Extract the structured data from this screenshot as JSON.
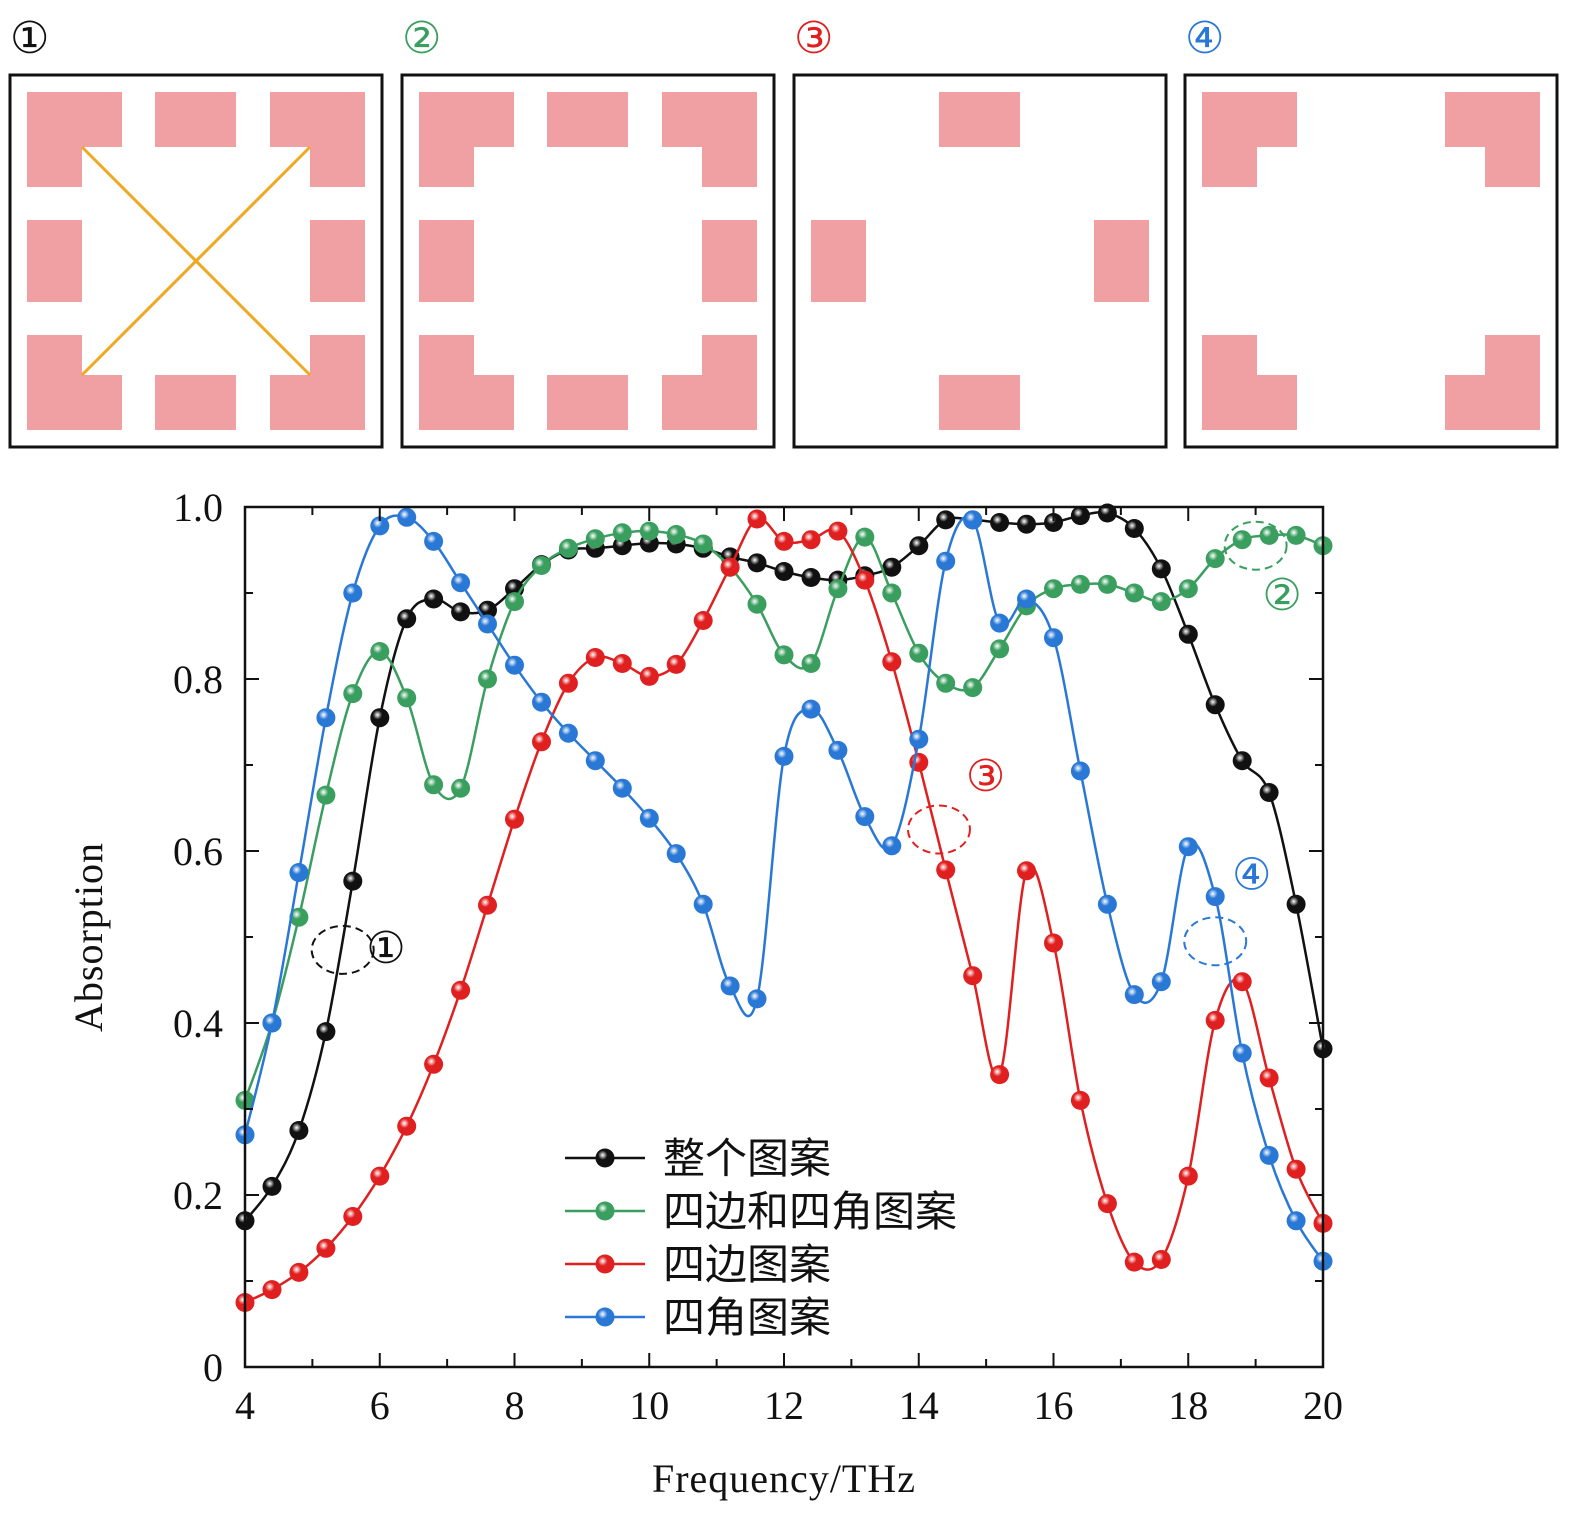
{
  "panels": [
    {
      "label": "①",
      "color": "#111111",
      "pattern": "whole",
      "diagonals": true
    },
    {
      "label": "②",
      "color": "#3a9e5f",
      "pattern": "sides-and-corners",
      "diagonals": false
    },
    {
      "label": "③",
      "color": "#e02020",
      "pattern": "sides",
      "diagonals": false
    },
    {
      "label": "④",
      "color": "#2a78d6",
      "pattern": "corners",
      "diagonals": false
    }
  ],
  "colors": {
    "patch": "#f0a0a2",
    "diagonal": "#f0a820",
    "frame": "#111111"
  },
  "chart_data": {
    "type": "line",
    "xlabel": "Frequency/THz",
    "ylabel": "Absorption",
    "xlim": [
      4,
      20
    ],
    "ylim": [
      0,
      1.0
    ],
    "xticks": [
      "4",
      "6",
      "8",
      "10",
      "12",
      "14",
      "16",
      "18",
      "20"
    ],
    "yticks": [
      "0",
      "0.2",
      "0.4",
      "0.6",
      "0.8",
      "1.0"
    ],
    "legend_position": "bottom-center",
    "series": [
      {
        "name": "整个图案",
        "color": "#111111",
        "marker_fill": "#111111",
        "x": [
          4.0,
          4.4,
          4.8,
          5.2,
          5.6,
          6.0,
          6.4,
          6.8,
          7.2,
          7.6,
          8.0,
          8.4,
          8.8,
          9.2,
          9.6,
          10.0,
          10.4,
          10.8,
          11.2,
          11.6,
          12.0,
          12.4,
          12.8,
          13.2,
          13.6,
          14.0,
          14.4,
          14.8,
          15.2,
          15.6,
          16.0,
          16.4,
          16.8,
          17.2,
          17.6,
          18.0,
          18.4,
          18.8,
          19.2,
          19.6,
          20.0
        ],
        "y": [
          0.17,
          0.21,
          0.275,
          0.39,
          0.565,
          0.755,
          0.87,
          0.893,
          0.878,
          0.88,
          0.905,
          0.933,
          0.95,
          0.952,
          0.955,
          0.958,
          0.957,
          0.952,
          0.942,
          0.935,
          0.925,
          0.918,
          0.915,
          0.92,
          0.93,
          0.955,
          0.985,
          0.985,
          0.982,
          0.98,
          0.982,
          0.99,
          0.993,
          0.975,
          0.928,
          0.852,
          0.77,
          0.705,
          0.668,
          0.538,
          0.37
        ]
      },
      {
        "name": "四边和四角图案",
        "color": "#3a9e5f",
        "marker_fill": "#3a9e5f",
        "x": [
          4.0,
          4.4,
          4.8,
          5.2,
          5.6,
          6.0,
          6.4,
          6.8,
          7.2,
          7.6,
          8.0,
          8.4,
          8.8,
          9.2,
          9.6,
          10.0,
          10.4,
          10.8,
          11.2,
          11.6,
          12.0,
          12.4,
          12.8,
          13.2,
          13.6,
          14.0,
          14.4,
          14.8,
          15.2,
          15.6,
          16.0,
          16.4,
          16.8,
          17.2,
          17.6,
          18.0,
          18.4,
          18.8,
          19.2,
          19.6,
          20.0
        ],
        "y": [
          0.31,
          0.4,
          0.523,
          0.665,
          0.783,
          0.832,
          0.778,
          0.677,
          0.673,
          0.8,
          0.89,
          0.932,
          0.952,
          0.963,
          0.97,
          0.972,
          0.968,
          0.957,
          0.93,
          0.887,
          0.828,
          0.818,
          0.905,
          0.965,
          0.9,
          0.83,
          0.795,
          0.79,
          0.835,
          0.885,
          0.905,
          0.91,
          0.91,
          0.9,
          0.89,
          0.905,
          0.94,
          0.962,
          0.967,
          0.967,
          0.955
        ]
      },
      {
        "name": "四边图案",
        "color": "#e02020",
        "marker_fill": "#e02020",
        "x": [
          4.0,
          4.4,
          4.8,
          5.2,
          5.6,
          6.0,
          6.4,
          6.8,
          7.2,
          7.6,
          8.0,
          8.4,
          8.8,
          9.2,
          9.6,
          10.0,
          10.4,
          10.8,
          11.2,
          11.6,
          12.0,
          12.4,
          12.8,
          13.2,
          13.6,
          14.0,
          14.4,
          14.8,
          15.2,
          15.6,
          16.0,
          16.4,
          16.8,
          17.2,
          17.6,
          18.0,
          18.4,
          18.8,
          19.2,
          19.6,
          20.0
        ],
        "y": [
          0.075,
          0.09,
          0.11,
          0.138,
          0.175,
          0.222,
          0.28,
          0.352,
          0.438,
          0.537,
          0.637,
          0.727,
          0.795,
          0.825,
          0.818,
          0.803,
          0.817,
          0.868,
          0.93,
          0.986,
          0.96,
          0.962,
          0.972,
          0.915,
          0.82,
          0.703,
          0.578,
          0.455,
          0.34,
          0.577,
          0.493,
          0.31,
          0.19,
          0.122,
          0.125,
          0.222,
          0.403,
          0.448,
          0.336,
          0.23,
          0.167
        ]
      },
      {
        "name": "四角图案",
        "color": "#2a78d6",
        "marker_fill": "#2a78d6",
        "x": [
          4.0,
          4.4,
          4.8,
          5.2,
          5.6,
          6.0,
          6.4,
          6.8,
          7.2,
          7.6,
          8.0,
          8.4,
          8.8,
          9.2,
          9.6,
          10.0,
          10.4,
          10.8,
          11.2,
          11.6,
          12.0,
          12.4,
          12.8,
          13.2,
          13.6,
          14.0,
          14.4,
          14.8,
          15.2,
          15.6,
          16.0,
          16.4,
          16.8,
          17.2,
          17.6,
          18.0,
          18.4,
          18.8,
          19.2,
          19.6,
          20.0
        ],
        "y": [
          0.27,
          0.4,
          0.575,
          0.755,
          0.9,
          0.978,
          0.988,
          0.96,
          0.912,
          0.864,
          0.816,
          0.773,
          0.737,
          0.705,
          0.673,
          0.638,
          0.597,
          0.538,
          0.443,
          0.428,
          0.71,
          0.765,
          0.717,
          0.64,
          0.606,
          0.73,
          0.937,
          0.985,
          0.865,
          0.893,
          0.848,
          0.693,
          0.538,
          0.433,
          0.448,
          0.605,
          0.547,
          0.365,
          0.246,
          0.17,
          0.123
        ]
      }
    ],
    "annotations": [
      {
        "label": "①",
        "series": 0
      },
      {
        "label": "②",
        "series": 1
      },
      {
        "label": "③",
        "series": 2
      },
      {
        "label": "④",
        "series": 3
      }
    ]
  }
}
